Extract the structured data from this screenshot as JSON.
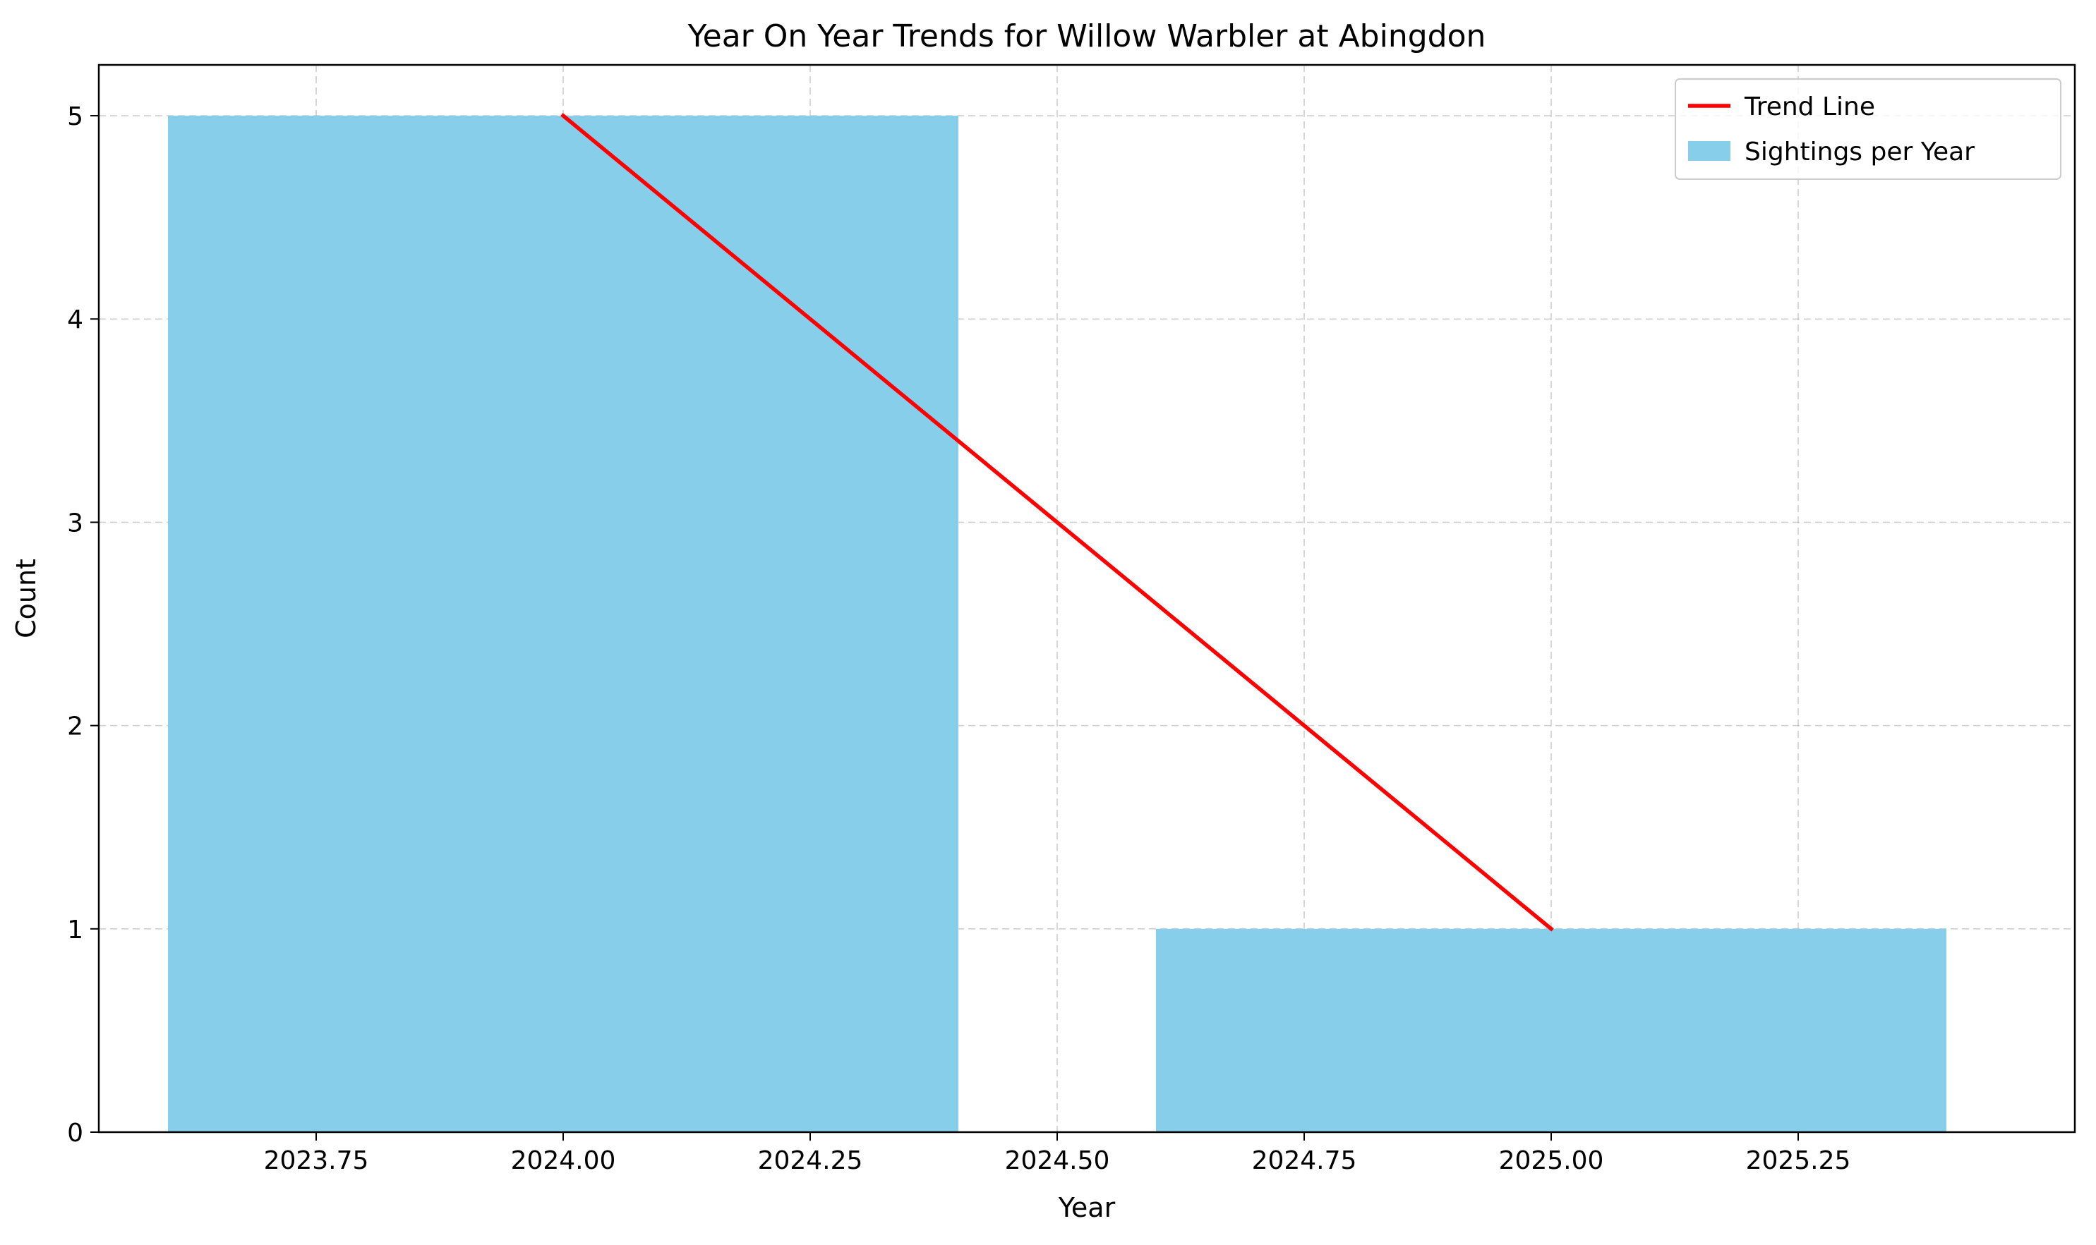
{
  "chart_data": {
    "type": "bar",
    "title": "Year On Year Trends for Willow Warbler at Abingdon",
    "xlabel": "Year",
    "ylabel": "Count",
    "xlim": [
      2023.53,
      2025.53
    ],
    "ylim": [
      0,
      5.25
    ],
    "x_ticks": [
      2023.75,
      2024.0,
      2024.25,
      2024.5,
      2024.75,
      2025.0,
      2025.25
    ],
    "x_tick_labels": [
      "2023.75",
      "2024.00",
      "2024.25",
      "2024.50",
      "2024.75",
      "2025.00",
      "2025.25"
    ],
    "y_ticks": [
      0,
      1,
      2,
      3,
      4,
      5
    ],
    "y_tick_labels": [
      "0",
      "1",
      "2",
      "3",
      "4",
      "5"
    ],
    "grid": true,
    "legend_position": "top-right",
    "bar_width": 0.8,
    "series": [
      {
        "name": "Sightings per Year",
        "type": "bar",
        "color": "#87ceeb",
        "x": [
          2024,
          2025
        ],
        "values": [
          5,
          1
        ]
      },
      {
        "name": "Trend Line",
        "type": "line",
        "color": "#ff0000",
        "x": [
          2024,
          2025
        ],
        "values": [
          5,
          1
        ]
      }
    ],
    "legend": [
      {
        "label": "Trend Line",
        "kind": "line",
        "color": "#ff0000"
      },
      {
        "label": "Sightings per Year",
        "kind": "patch",
        "color": "#87ceeb"
      }
    ]
  }
}
